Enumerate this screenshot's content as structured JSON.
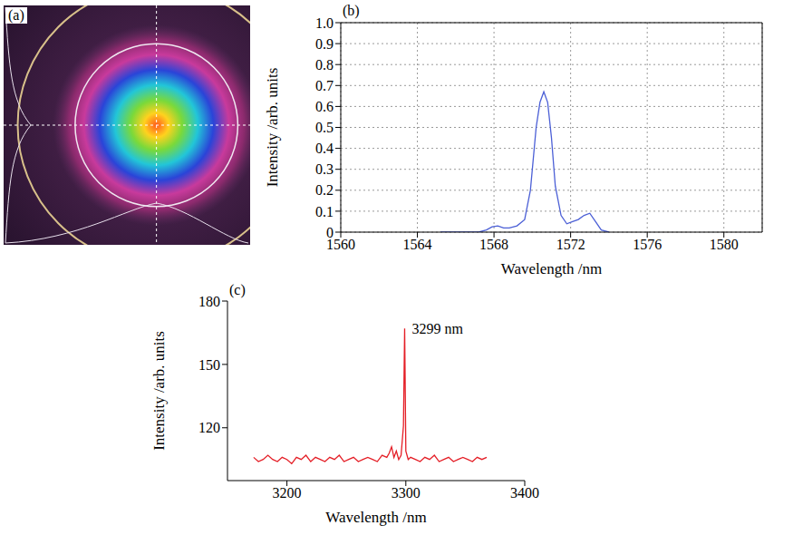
{
  "chart_data": [
    {
      "type": "image",
      "panel": "(a)"
    },
    {
      "type": "line",
      "panel": "(b)",
      "x_label": "Wavelength /nm",
      "y_label": "Intensity /arb. units",
      "x": [
        1565.2,
        1566.5,
        1567.2,
        1567.6,
        1567.9,
        1568.2,
        1568.5,
        1568.8,
        1569.2,
        1569.6,
        1569.9,
        1570.2,
        1570.4,
        1570.6,
        1570.8,
        1571.0,
        1571.2,
        1571.5,
        1571.8,
        1572.1,
        1572.4,
        1572.7,
        1573.0,
        1573.3,
        1573.6,
        1574.0
      ],
      "values": [
        0,
        0,
        0,
        0.01,
        0.025,
        0.03,
        0.02,
        0.02,
        0.03,
        0.06,
        0.2,
        0.5,
        0.62,
        0.67,
        0.62,
        0.45,
        0.22,
        0.08,
        0.04,
        0.05,
        0.06,
        0.08,
        0.09,
        0.05,
        0.01,
        0
      ],
      "color": "#4b5fd6",
      "line_style": "solid",
      "grid": true,
      "xlim": [
        1560,
        1582
      ],
      "xticks": [
        1560,
        1564,
        1568,
        1572,
        1576,
        1580
      ],
      "ylim": [
        0,
        1
      ],
      "yticks": [
        0,
        0.1,
        0.2,
        0.3,
        0.4,
        0.5,
        0.6,
        0.7,
        0.8,
        0.9,
        {
          "value": 1,
          "label": "1.0"
        }
      ]
    },
    {
      "type": "line",
      "panel": "(c)",
      "x_label": "Wavelength /nm",
      "y_label": "Intensity /arb. units",
      "x": [
        3172,
        3176,
        3180,
        3184,
        3188,
        3192,
        3196,
        3200,
        3204,
        3208,
        3212,
        3216,
        3220,
        3224,
        3228,
        3232,
        3236,
        3240,
        3244,
        3248,
        3252,
        3256,
        3260,
        3264,
        3268,
        3272,
        3276,
        3280,
        3284,
        3286,
        3288,
        3290,
        3292,
        3294,
        3296,
        3298,
        3299,
        3300,
        3302,
        3304,
        3308,
        3312,
        3316,
        3320,
        3324,
        3328,
        3332,
        3336,
        3340,
        3344,
        3348,
        3352,
        3356,
        3360,
        3364,
        3368
      ],
      "values": [
        106,
        104,
        105,
        107,
        105,
        104,
        106,
        105,
        103,
        106,
        105,
        107,
        104,
        106,
        105,
        104,
        106,
        105,
        107,
        104,
        105,
        106,
        104,
        105,
        106,
        105,
        104,
        107,
        106,
        108,
        111,
        106,
        109,
        105,
        107,
        121,
        167,
        109,
        105,
        106,
        105,
        104,
        106,
        105,
        107,
        104,
        105,
        106,
        104,
        105,
        106,
        105,
        104,
        106,
        105,
        106
      ],
      "color": "#e41e26",
      "line_style": "solid",
      "grid": false,
      "xlim": [
        3150,
        3400
      ],
      "xticks": [
        3200,
        3300,
        3400
      ],
      "ylim": [
        95,
        180
      ],
      "yticks": [
        120,
        150,
        180
      ],
      "annotations": [
        {
          "x": 3299,
          "y": 167,
          "text": "3299 nm"
        }
      ]
    }
  ]
}
